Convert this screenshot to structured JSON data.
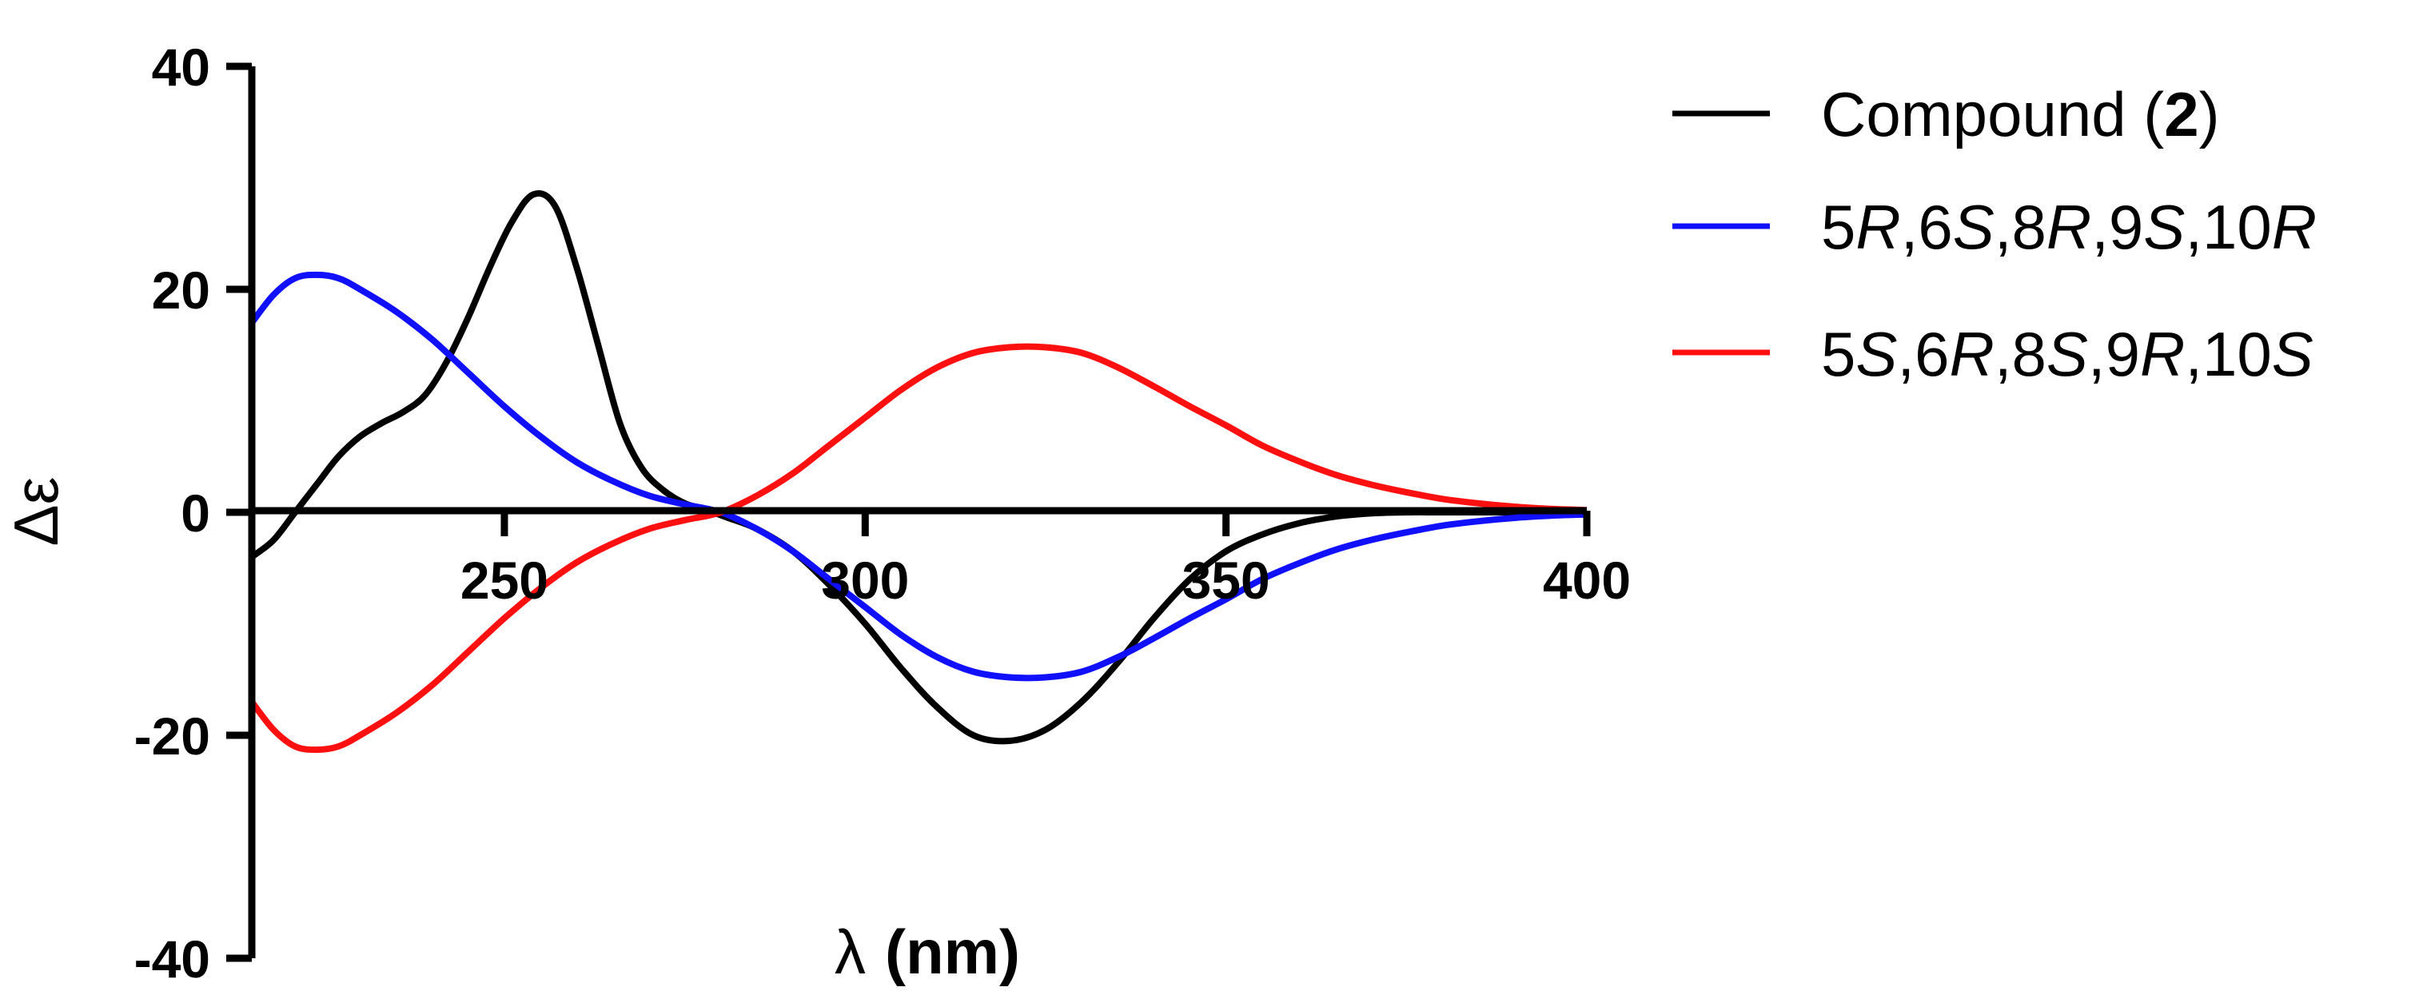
{
  "chart_data": {
    "type": "line",
    "xlabel_symbol": "λ",
    "xlabel_unit": "(nm)",
    "ylabel": "Δε",
    "xlim": [
      215,
      400
    ],
    "ylim": [
      -40,
      40
    ],
    "x_ticks": [
      250,
      300,
      350,
      400
    ],
    "y_ticks": [
      40,
      20,
      0,
      -20,
      -40
    ],
    "legend_position": "top-right",
    "series": [
      {
        "name": "Compound (2)",
        "name_prefix": "Compound (",
        "name_bold": "2",
        "name_suffix": ")",
        "color": "#000000",
        "x": [
          215,
          218,
          221,
          224,
          227,
          230,
          233,
          236,
          239,
          242,
          245,
          248,
          251,
          254,
          257,
          260,
          263,
          266,
          269,
          272,
          275,
          278,
          281,
          285,
          290,
          295,
          300,
          305,
          310,
          315,
          320,
          325,
          330,
          335,
          340,
          345,
          350,
          355,
          360,
          365,
          370,
          375,
          380,
          390,
          400
        ],
        "y": [
          -4,
          -2.5,
          0,
          2.5,
          5,
          6.8,
          8,
          9,
          10.5,
          13.5,
          17.5,
          22,
          26,
          28.5,
          27.5,
          22,
          15,
          8,
          4,
          2,
          0.8,
          0.2,
          -0.5,
          -1.5,
          -3.5,
          -6.5,
          -10,
          -14,
          -17.5,
          -20,
          -20.5,
          -19.5,
          -17,
          -13.5,
          -9.5,
          -6,
          -3.5,
          -2,
          -1,
          -0.4,
          -0.1,
          0,
          0,
          0,
          0
        ]
      },
      {
        "name": "5R,6S,8R,9S,10R",
        "name_parts": [
          {
            "t": "5",
            "i": false
          },
          {
            "t": "R",
            "i": true
          },
          {
            "t": ",6",
            "i": false
          },
          {
            "t": "S",
            "i": true
          },
          {
            "t": ",8",
            "i": false
          },
          {
            "t": "R",
            "i": true
          },
          {
            "t": ",9",
            "i": false
          },
          {
            "t": "S",
            "i": true
          },
          {
            "t": ",10",
            "i": false
          },
          {
            "t": "R",
            "i": true
          }
        ],
        "color": "#1010ff",
        "x": [
          215,
          218,
          221,
          224,
          227,
          230,
          235,
          240,
          245,
          250,
          255,
          260,
          265,
          270,
          275,
          280,
          285,
          290,
          295,
          300,
          305,
          310,
          315,
          320,
          325,
          330,
          335,
          340,
          345,
          350,
          355,
          360,
          365,
          370,
          375,
          380,
          385,
          390,
          395,
          400
        ],
        "y": [
          17,
          19.5,
          21,
          21.3,
          21,
          20,
          18,
          15.5,
          12.5,
          9.5,
          6.8,
          4.5,
          2.8,
          1.5,
          0.7,
          0,
          -1.5,
          -3.5,
          -6,
          -8.5,
          -11,
          -13,
          -14.3,
          -14.8,
          -14.8,
          -14.3,
          -13,
          -11.3,
          -9.5,
          -7.8,
          -6,
          -4.6,
          -3.4,
          -2.5,
          -1.8,
          -1.2,
          -0.8,
          -0.5,
          -0.3,
          -0.2
        ]
      },
      {
        "name": "5S,6R,8S,9R,10S",
        "name_parts": [
          {
            "t": "5",
            "i": false
          },
          {
            "t": "S",
            "i": true
          },
          {
            "t": ",6",
            "i": false
          },
          {
            "t": "R",
            "i": true
          },
          {
            "t": ",8",
            "i": false
          },
          {
            "t": "S",
            "i": true
          },
          {
            "t": ",9",
            "i": false
          },
          {
            "t": "R",
            "i": true
          },
          {
            "t": ",10",
            "i": false
          },
          {
            "t": "S",
            "i": true
          }
        ],
        "color": "#ff1010",
        "x": [
          215,
          218,
          221,
          224,
          227,
          230,
          235,
          240,
          245,
          250,
          255,
          260,
          265,
          270,
          275,
          280,
          285,
          290,
          295,
          300,
          305,
          310,
          315,
          320,
          325,
          330,
          335,
          340,
          345,
          350,
          355,
          360,
          365,
          370,
          375,
          380,
          385,
          390,
          395,
          400
        ],
        "y": [
          -17,
          -19.5,
          -21,
          -21.3,
          -21,
          -20,
          -18,
          -15.5,
          -12.5,
          -9.5,
          -6.8,
          -4.5,
          -2.8,
          -1.5,
          -0.7,
          0,
          1.5,
          3.5,
          6,
          8.5,
          11,
          13,
          14.3,
          14.8,
          14.8,
          14.3,
          13,
          11.3,
          9.5,
          7.8,
          6,
          4.6,
          3.4,
          2.5,
          1.8,
          1.2,
          0.8,
          0.5,
          0.3,
          0.2
        ]
      }
    ]
  }
}
